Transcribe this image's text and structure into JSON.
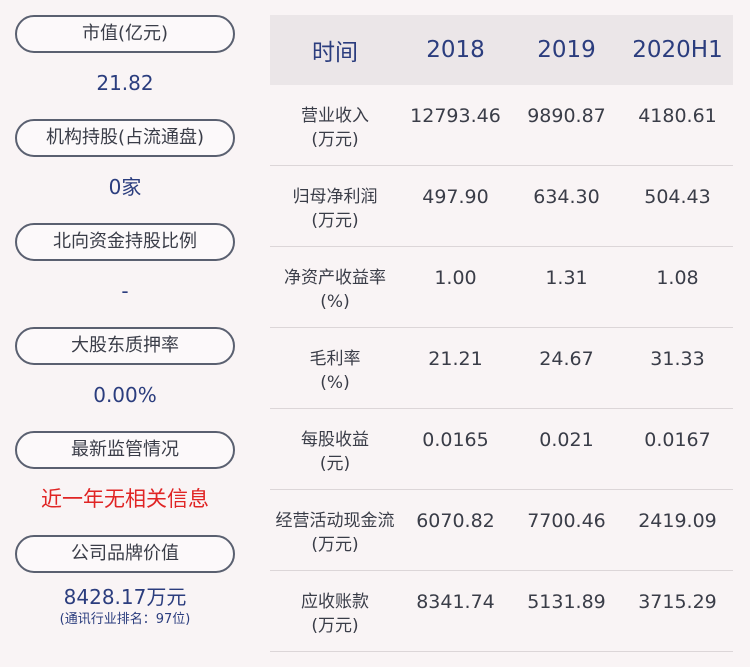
{
  "left_metrics": [
    {
      "label": "市值(亿元)",
      "value": "21.82"
    },
    {
      "label": "机构持股(占流通盘)",
      "value": "0家"
    },
    {
      "label": "北向资金持股比例",
      "value": "-"
    },
    {
      "label": "大股东质押率",
      "value": "0.00%"
    },
    {
      "label": "最新监管情况",
      "value": "近一年无相关信息"
    },
    {
      "label": "公司品牌价值",
      "value": "8428.17万元",
      "sub": "(通讯行业排名：97位)"
    }
  ],
  "table": {
    "headers": [
      "时间",
      "2018",
      "2019",
      "2020H1"
    ],
    "rows": [
      {
        "label1": "营业收入",
        "label2": "(万元)",
        "values": [
          "12793.46",
          "9890.87",
          "4180.61"
        ]
      },
      {
        "label1": "归母净利润",
        "label2": "(万元)",
        "values": [
          "497.90",
          "634.30",
          "504.43"
        ]
      },
      {
        "label1": "净资产收益率",
        "label2": "(%)",
        "values": [
          "1.00",
          "1.31",
          "1.08"
        ]
      },
      {
        "label1": "毛利率",
        "label2": "(%)",
        "values": [
          "21.21",
          "24.67",
          "31.33"
        ]
      },
      {
        "label1": "每股收益",
        "label2": "(元)",
        "values": [
          "0.0165",
          "0.021",
          "0.0167"
        ]
      },
      {
        "label1": "经营活动现金流",
        "label2": "(万元)",
        "values": [
          "6070.82",
          "7700.46",
          "2419.09"
        ]
      },
      {
        "label1": "应收账款",
        "label2": "(万元)",
        "values": [
          "8341.74",
          "5131.89",
          "3715.29"
        ]
      }
    ]
  },
  "colors": {
    "background": "#f9f4f5",
    "value_blue": "#2b3d7e",
    "alert_red": "#e02424",
    "header_bg": "#ebe6e8"
  }
}
